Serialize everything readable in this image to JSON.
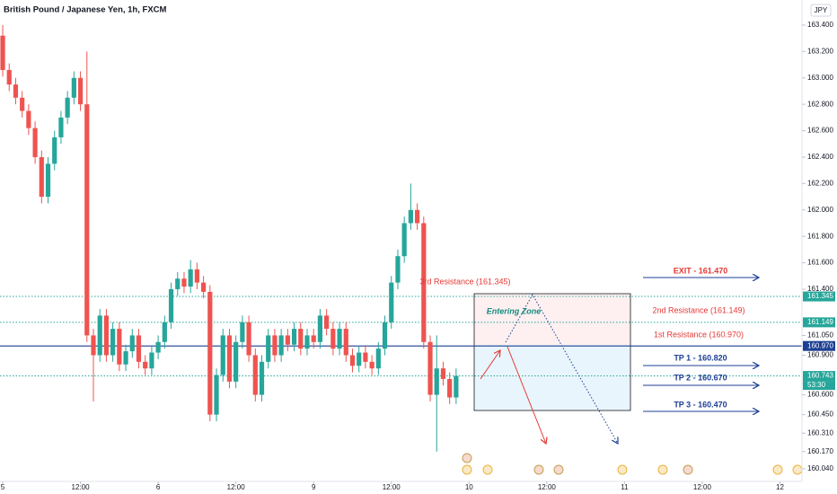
{
  "chart_data": {
    "type": "candlestick",
    "title": "British Pound / Japanese Yen, 1h, FXCM",
    "currency": "JPY",
    "up_color": "#26a69a",
    "down_color": "#ef5350",
    "x": [
      0,
      1,
      2,
      3,
      4,
      5,
      6,
      7,
      8,
      9,
      10,
      11,
      12,
      13,
      14,
      15,
      16,
      17,
      18,
      19,
      20,
      21,
      22,
      23,
      24,
      25,
      26,
      27,
      28,
      29,
      30,
      31,
      32,
      33,
      34,
      35,
      36,
      37,
      38,
      39,
      40,
      41,
      42,
      43,
      44,
      45,
      46,
      47,
      48,
      49,
      50,
      51,
      52,
      53,
      54,
      55,
      56,
      57,
      58,
      59,
      60,
      61,
      62,
      63,
      64,
      65,
      66,
      67,
      68,
      69,
      70
    ],
    "open": [
      163.32,
      163.06,
      162.95,
      162.85,
      162.75,
      162.62,
      162.4,
      162.1,
      162.35,
      162.55,
      162.7,
      162.85,
      163.0,
      162.8,
      161.05,
      160.9,
      161.2,
      160.9,
      161.1,
      160.83,
      160.93,
      161.05,
      160.85,
      160.8,
      160.92,
      161.0,
      161.15,
      161.4,
      161.48,
      161.42,
      161.55,
      161.45,
      161.38,
      160.45,
      160.75,
      161.05,
      160.7,
      161.0,
      161.15,
      160.9,
      160.6,
      160.85,
      161.05,
      160.9,
      161.05,
      160.98,
      161.1,
      160.95,
      161.05,
      161.0,
      161.2,
      161.1,
      160.95,
      161.1,
      160.9,
      160.82,
      160.92,
      160.85,
      160.8,
      160.95,
      161.15,
      161.45,
      161.65,
      161.9,
      162.0,
      161.9,
      161.0,
      160.6,
      160.8,
      160.72,
      160.58
    ],
    "high": [
      163.4,
      163.11,
      163.0,
      162.9,
      162.8,
      162.67,
      162.45,
      162.4,
      162.6,
      162.75,
      162.9,
      163.05,
      163.05,
      163.2,
      161.1,
      161.25,
      161.25,
      161.15,
      161.15,
      160.98,
      161.1,
      161.1,
      160.9,
      160.97,
      161.05,
      161.2,
      161.45,
      161.53,
      161.53,
      161.62,
      161.6,
      161.5,
      161.43,
      160.8,
      161.1,
      161.1,
      161.05,
      161.2,
      161.2,
      160.95,
      160.9,
      161.1,
      161.1,
      161.1,
      161.1,
      161.15,
      161.15,
      161.1,
      161.1,
      161.25,
      161.25,
      161.15,
      161.15,
      161.15,
      160.95,
      160.97,
      160.97,
      160.9,
      161.0,
      161.2,
      161.5,
      161.7,
      161.95,
      162.2,
      162.05,
      161.95,
      161.05,
      161.05,
      160.85,
      160.77,
      160.8
    ],
    "low": [
      163.01,
      162.9,
      162.8,
      162.7,
      162.57,
      162.35,
      162.05,
      162.05,
      162.3,
      162.5,
      162.65,
      162.8,
      162.75,
      161.0,
      160.55,
      160.85,
      160.85,
      160.85,
      160.78,
      160.78,
      160.88,
      160.8,
      160.75,
      160.75,
      160.87,
      160.95,
      161.1,
      161.35,
      161.37,
      161.37,
      161.4,
      161.33,
      160.4,
      160.4,
      160.7,
      160.65,
      160.65,
      160.95,
      160.85,
      160.55,
      160.55,
      160.8,
      160.85,
      160.85,
      160.93,
      160.93,
      160.9,
      160.9,
      160.95,
      160.95,
      161.05,
      160.9,
      160.9,
      160.85,
      160.77,
      160.77,
      160.8,
      160.75,
      160.75,
      160.9,
      161.1,
      161.4,
      161.6,
      161.85,
      161.85,
      160.95,
      160.55,
      160.17,
      160.67,
      160.53,
      160.53
    ],
    "close": [
      163.06,
      162.95,
      162.85,
      162.75,
      162.62,
      162.4,
      162.1,
      162.35,
      162.55,
      162.7,
      162.85,
      163.0,
      162.8,
      161.05,
      160.9,
      161.2,
      160.9,
      161.1,
      160.83,
      160.93,
      161.05,
      160.85,
      160.8,
      160.92,
      161.0,
      161.15,
      161.4,
      161.48,
      161.42,
      161.55,
      161.45,
      161.38,
      160.45,
      160.75,
      161.05,
      160.7,
      161.0,
      161.15,
      160.9,
      160.6,
      160.85,
      161.05,
      160.9,
      161.05,
      160.98,
      161.1,
      160.95,
      161.05,
      161.0,
      161.2,
      161.1,
      160.95,
      161.1,
      160.9,
      160.82,
      160.92,
      160.85,
      160.8,
      160.95,
      161.15,
      161.45,
      161.65,
      161.9,
      162.0,
      161.9,
      161.0,
      160.6,
      160.8,
      160.72,
      160.58,
      160.743
    ],
    "xlim": [
      -0.42,
      123.4
    ],
    "xticks": [
      {
        "value": 0,
        "label": "5"
      },
      {
        "value": 12,
        "label": "12:00"
      },
      {
        "value": 24,
        "label": "6"
      },
      {
        "value": 36,
        "label": "12:00"
      },
      {
        "value": 48,
        "label": "9"
      },
      {
        "value": 60,
        "label": "12:00"
      },
      {
        "value": 72,
        "label": "10"
      },
      {
        "value": 84,
        "label": "12:00"
      },
      {
        "value": 96,
        "label": "11"
      },
      {
        "value": 108,
        "label": "12:00"
      },
      {
        "value": 120,
        "label": "12"
      }
    ],
    "ylim": [
      159.917,
      163.59
    ],
    "yticks": [
      {
        "value": 163.4,
        "label": "163.400"
      },
      {
        "value": 163.2,
        "label": "163.200"
      },
      {
        "value": 163.0,
        "label": "163.000"
      },
      {
        "value": 162.8,
        "label": "162.800"
      },
      {
        "value": 162.6,
        "label": "162.600"
      },
      {
        "value": 162.4,
        "label": "162.400"
      },
      {
        "value": 162.2,
        "label": "162.200"
      },
      {
        "value": 162.0,
        "label": "162.000"
      },
      {
        "value": 161.8,
        "label": "161.800"
      },
      {
        "value": 161.6,
        "label": "161.600"
      },
      {
        "value": 161.4,
        "label": "161.400"
      },
      {
        "value": 161.05,
        "label": "161.050"
      },
      {
        "value": 160.9,
        "label": "160.900"
      },
      {
        "value": 160.6,
        "label": "160.600"
      },
      {
        "value": 160.45,
        "label": "160.450"
      },
      {
        "value": 160.31,
        "label": "160.310"
      },
      {
        "value": 160.17,
        "label": "160.170"
      },
      {
        "value": 160.04,
        "label": "160.040"
      }
    ],
    "levels": [
      {
        "value": 161.345,
        "label": "161.345",
        "color": "#26a69a",
        "style": "dotted"
      },
      {
        "value": 161.149,
        "label": "161.149",
        "color": "#26a69a",
        "style": "dotted"
      },
      {
        "value": 160.97,
        "label": "160.970",
        "color": "#1c3f94",
        "style": "solid"
      },
      {
        "value": 160.743,
        "label": "160.743",
        "color": "#26a69a",
        "style": "dotted"
      }
    ],
    "countdown": "53:30",
    "annotations": [
      "3rd Resistance (161.345)",
      "2nd Resistance (161.149)",
      "1st Resistance (160.970)",
      "EXIT - 161.470",
      "TP 1 - 160.820",
      "TP 2 - 160.670",
      "TP 3 - 160.470",
      "Entering Zone"
    ]
  }
}
